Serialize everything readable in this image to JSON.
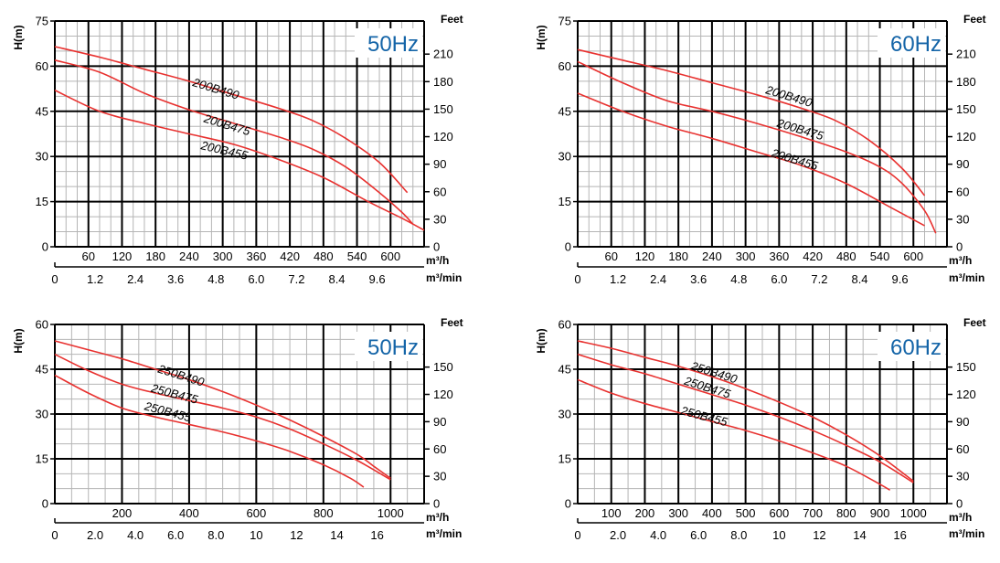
{
  "colors": {
    "curve": "#e8312f",
    "minor_grid": "#b5b5b5",
    "major_grid": "#000000",
    "frequency_label": "#1565a8"
  },
  "chart_data": [
    {
      "type": "line",
      "frequency_label": "50Hz",
      "ylabel": "H(m)",
      "y2label": "Feet",
      "xlabel": "m³/h",
      "x2label": "m³/min",
      "xlim": [
        0,
        660
      ],
      "ylim": [
        0,
        75
      ],
      "y_ticks": [
        0,
        15,
        30,
        45,
        60,
        75
      ],
      "y_tick_labels": [
        "0",
        "15",
        "30",
        "45",
        "60",
        "75"
      ],
      "feet_ticks": [
        0,
        30,
        60,
        90,
        120,
        150,
        180,
        210
      ],
      "feet_tick_labels": [
        "0",
        "30",
        "60",
        "90",
        "120",
        "150",
        "180",
        "210"
      ],
      "x_ticks": [
        60,
        120,
        180,
        240,
        300,
        360,
        420,
        480,
        540,
        600
      ],
      "x_tick_labels": [
        "60",
        "120",
        "180",
        "240",
        "300",
        "360",
        "420",
        "480",
        "540",
        "600"
      ],
      "x2_ticks": [
        0,
        1.2,
        2.4,
        3.6,
        4.8,
        6.0,
        7.2,
        8.4,
        9.6
      ],
      "x2_tick_labels": [
        "0",
        "1.2",
        "2.4",
        "3.6",
        "4.8",
        "6.0",
        "7.2",
        "8.4",
        "9.6"
      ],
      "x_minor_step": 20,
      "y_minor_step": 5,
      "series": [
        {
          "name": "200B490",
          "x": [
            0,
            80,
            160,
            240,
            320,
            400,
            460,
            520,
            580,
            630
          ],
          "y": [
            66.5,
            63,
            59,
            55,
            50.5,
            46,
            42,
            36,
            28,
            18
          ]
        },
        {
          "name": "200B475",
          "x": [
            0,
            80,
            160,
            240,
            320,
            400,
            460,
            520,
            580,
            620,
            640
          ],
          "y": [
            62,
            58,
            51,
            45.5,
            41,
            36.5,
            32.5,
            26.5,
            18,
            11.5,
            7.5
          ]
        },
        {
          "name": "200B455",
          "x": [
            0,
            80,
            160,
            240,
            320,
            400,
            480,
            560,
            620,
            660
          ],
          "y": [
            52,
            45,
            41,
            37.5,
            34,
            29,
            23,
            15,
            9.5,
            5.5
          ]
        }
      ],
      "labels": [
        {
          "series": "200B490",
          "x": 245,
          "y": 53.5
        },
        {
          "series": "200B475",
          "x": 265,
          "y": 41.5
        },
        {
          "series": "200B455",
          "x": 260,
          "y": 32.5
        }
      ]
    },
    {
      "type": "line",
      "frequency_label": "60Hz",
      "ylabel": "H(m)",
      "y2label": "Feet",
      "xlabel": "m³/h",
      "x2label": "m³/min",
      "xlim": [
        0,
        660
      ],
      "ylim": [
        0,
        75
      ],
      "y_ticks": [
        0,
        15,
        30,
        45,
        60,
        75
      ],
      "y_tick_labels": [
        "0",
        "15",
        "30",
        "45",
        "60",
        "75"
      ],
      "feet_ticks": [
        0,
        30,
        60,
        90,
        120,
        150,
        180,
        210
      ],
      "feet_tick_labels": [
        "0",
        "30",
        "60",
        "90",
        "120",
        "150",
        "180",
        "210"
      ],
      "x_ticks": [
        60,
        120,
        180,
        240,
        300,
        360,
        420,
        480,
        540,
        600
      ],
      "x_tick_labels": [
        "60",
        "120",
        "180",
        "240",
        "300",
        "360",
        "420",
        "480",
        "540",
        "600"
      ],
      "x2_ticks": [
        0,
        1.2,
        2.4,
        3.6,
        4.8,
        6.0,
        7.2,
        8.4,
        9.6
      ],
      "x2_tick_labels": [
        "0",
        "1.2",
        "2.4",
        "3.6",
        "4.8",
        "6.0",
        "7.2",
        "8.4",
        "9.6"
      ],
      "x_minor_step": 20,
      "y_minor_step": 5,
      "series": [
        {
          "name": "200B490",
          "x": [
            0,
            80,
            160,
            240,
            320,
            400,
            460,
            520,
            580,
            620
          ],
          "y": [
            65.5,
            62,
            58.5,
            54.5,
            50.5,
            46,
            42,
            35.5,
            26,
            17
          ]
        },
        {
          "name": "200B475",
          "x": [
            0,
            80,
            160,
            240,
            320,
            400,
            480,
            540,
            580,
            620,
            640
          ],
          "y": [
            61.5,
            54.5,
            48.5,
            45,
            41,
            36.5,
            31.5,
            26.5,
            21,
            12,
            4.5
          ]
        },
        {
          "name": "200B455",
          "x": [
            0,
            80,
            160,
            240,
            320,
            400,
            480,
            560,
            620
          ],
          "y": [
            51,
            45,
            40,
            36,
            31.5,
            27,
            21,
            13,
            7
          ]
        }
      ],
      "labels": [
        {
          "series": "200B490",
          "x": 335,
          "y": 51
        },
        {
          "series": "200B475",
          "x": 355,
          "y": 40
        },
        {
          "series": "200B455",
          "x": 345,
          "y": 30
        }
      ]
    },
    {
      "type": "line",
      "frequency_label": "50Hz",
      "ylabel": "H(m)",
      "y2label": "Feet",
      "xlabel": "m³/h",
      "x2label": "m³/min",
      "xlim": [
        0,
        1100
      ],
      "ylim": [
        0,
        60
      ],
      "y_ticks": [
        0,
        15,
        30,
        45,
        60
      ],
      "y_tick_labels": [
        "0",
        "15",
        "30",
        "45",
        "60"
      ],
      "feet_ticks": [
        0,
        30,
        60,
        90,
        120,
        150
      ],
      "feet_tick_labels": [
        "0",
        "30",
        "60",
        "90",
        "120",
        "150"
      ],
      "x_ticks": [
        200,
        400,
        600,
        800,
        1000
      ],
      "x_tick_labels": [
        "200",
        "400",
        "600",
        "800",
        "1000"
      ],
      "x2_ticks": [
        0,
        2.0,
        4.0,
        6.0,
        8.0,
        10,
        12,
        14,
        16
      ],
      "x2_tick_labels": [
        "0",
        "2.0",
        "4.0",
        "6.0",
        "8.0",
        "10",
        "12",
        "14",
        "16"
      ],
      "x_minor_step": 50,
      "y_minor_step": 5,
      "series": [
        {
          "name": "250B490",
          "x": [
            0,
            100,
            200,
            300,
            400,
            500,
            600,
            700,
            800,
            900,
            950,
            1000
          ],
          "y": [
            54.5,
            51.5,
            48.5,
            45,
            41.5,
            37.5,
            33,
            28,
            22.5,
            16.5,
            12.5,
            8.5
          ]
        },
        {
          "name": "250B475",
          "x": [
            0,
            100,
            200,
            300,
            400,
            500,
            600,
            700,
            800,
            900,
            1000
          ],
          "y": [
            50,
            44.5,
            40,
            37,
            34.5,
            32,
            29,
            25,
            20,
            14.5,
            8
          ]
        },
        {
          "name": "250B455",
          "x": [
            0,
            100,
            200,
            300,
            400,
            500,
            600,
            700,
            800,
            880,
            920
          ],
          "y": [
            43,
            37,
            32,
            29,
            26.5,
            24,
            21,
            17.5,
            13,
            8.5,
            5.5
          ]
        }
      ],
      "labels": [
        {
          "series": "250B490",
          "x": 305,
          "y": 44
        },
        {
          "series": "250B475",
          "x": 285,
          "y": 37.5
        },
        {
          "series": "250B455",
          "x": 265,
          "y": 31.5
        }
      ]
    },
    {
      "type": "line",
      "frequency_label": "60Hz",
      "ylabel": "H(m)",
      "y2label": "Feet",
      "xlabel": "m³/h",
      "x2label": "m³/min",
      "xlim": [
        0,
        1100
      ],
      "ylim": [
        0,
        60
      ],
      "y_ticks": [
        0,
        15,
        30,
        45,
        60
      ],
      "y_tick_labels": [
        "0",
        "15",
        "30",
        "45",
        "60"
      ],
      "feet_ticks": [
        0,
        30,
        60,
        90,
        120,
        150
      ],
      "feet_tick_labels": [
        "0",
        "30",
        "60",
        "90",
        "120",
        "150"
      ],
      "x_ticks": [
        100,
        200,
        300,
        400,
        500,
        600,
        700,
        800,
        900,
        1000
      ],
      "x_tick_labels": [
        "100",
        "200",
        "300",
        "400",
        "500",
        "600",
        "700",
        "800",
        "900",
        "1000"
      ],
      "x2_ticks": [
        0,
        2.0,
        4.0,
        6.0,
        8.0,
        10,
        12,
        14,
        16
      ],
      "x2_tick_labels": [
        "0",
        "2.0",
        "4.0",
        "6.0",
        "8.0",
        "10",
        "12",
        "14",
        "16"
      ],
      "x_minor_step": 50,
      "y_minor_step": 5,
      "series": [
        {
          "name": "250B490",
          "x": [
            0,
            100,
            200,
            300,
            400,
            500,
            600,
            700,
            800,
            900,
            1000
          ],
          "y": [
            54.5,
            52,
            49,
            46,
            42.5,
            38.5,
            34,
            29,
            23,
            16,
            7.5
          ]
        },
        {
          "name": "250B475",
          "x": [
            0,
            100,
            200,
            300,
            400,
            500,
            600,
            700,
            800,
            900,
            1000
          ],
          "y": [
            50,
            46.5,
            43.5,
            40,
            36.5,
            33,
            29,
            24.5,
            19.5,
            14,
            7
          ]
        },
        {
          "name": "250B455",
          "x": [
            0,
            100,
            200,
            300,
            400,
            500,
            600,
            700,
            800,
            900,
            930
          ],
          "y": [
            41.5,
            37,
            33.5,
            30.5,
            27.5,
            24.5,
            21,
            17,
            12.5,
            6.5,
            4.5
          ]
        }
      ],
      "labels": [
        {
          "series": "250B490",
          "x": 335,
          "y": 45
        },
        {
          "series": "250B475",
          "x": 315,
          "y": 40
        },
        {
          "series": "250B455",
          "x": 305,
          "y": 30
        }
      ]
    }
  ]
}
